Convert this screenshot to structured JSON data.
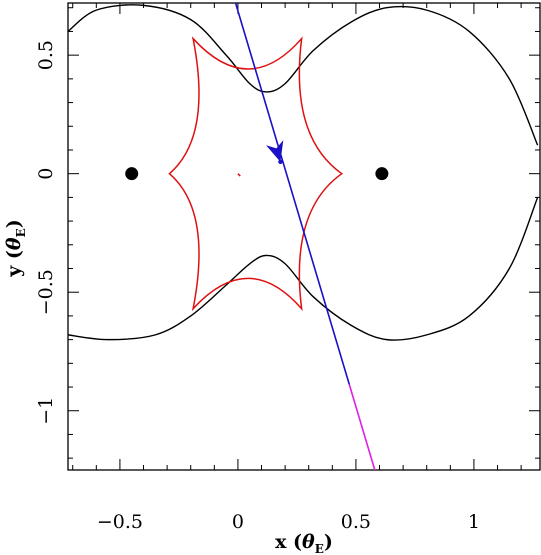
{
  "chart_data": {
    "type": "line",
    "xlabel": {
      "main": "x (",
      "symbol": "θ",
      "sub": "E",
      "close": ")"
    },
    "ylabel": {
      "main": "y (",
      "symbol": "θ",
      "sub": "E",
      "close": ")"
    },
    "xlim": [
      -0.72,
      1.28
    ],
    "ylim": [
      -1.25,
      0.72
    ],
    "x_ticks": [
      -0.5,
      0,
      0.5,
      1
    ],
    "x_tick_labels": [
      "−0.5",
      "0",
      "0.5",
      "1"
    ],
    "y_ticks": [
      -1,
      -0.5,
      0,
      0.5
    ],
    "y_tick_labels": [
      "−1",
      "−0.5",
      "0",
      "0.5"
    ],
    "grid": false,
    "lenses": [
      {
        "x": -0.45,
        "y": 0.0
      },
      {
        "x": 0.61,
        "y": 0.0
      }
    ],
    "caustic": {
      "color": "#dd1111",
      "cusps": [
        [
          -0.19,
          0.57
        ],
        [
          0.27,
          0.57
        ],
        [
          0.44,
          0.0
        ],
        [
          0.27,
          -0.57
        ],
        [
          -0.19,
          -0.57
        ],
        [
          -0.29,
          0.0
        ]
      ],
      "tiny_caustic": [
        [
          0.0,
          0.0
        ],
        [
          0.01,
          -0.01
        ]
      ]
    },
    "critical_curve_upper": [
      [
        -0.72,
        0.6
      ],
      [
        -0.6,
        0.69
      ],
      [
        -0.4,
        0.71
      ],
      [
        -0.2,
        0.65
      ],
      [
        -0.05,
        0.5
      ],
      [
        0.05,
        0.38
      ],
      [
        0.12,
        0.345
      ],
      [
        0.2,
        0.38
      ],
      [
        0.32,
        0.52
      ],
      [
        0.48,
        0.64
      ],
      [
        0.63,
        0.7
      ],
      [
        0.8,
        0.69
      ],
      [
        0.98,
        0.6
      ],
      [
        1.15,
        0.4
      ],
      [
        1.27,
        0.12
      ]
    ],
    "critical_curve_lower": [
      [
        -0.72,
        -0.68
      ],
      [
        -0.55,
        -0.7
      ],
      [
        -0.35,
        -0.68
      ],
      [
        -0.2,
        -0.6
      ],
      [
        -0.05,
        -0.47
      ],
      [
        0.05,
        -0.38
      ],
      [
        0.12,
        -0.345
      ],
      [
        0.2,
        -0.38
      ],
      [
        0.32,
        -0.52
      ],
      [
        0.48,
        -0.64
      ],
      [
        0.63,
        -0.7
      ],
      [
        0.8,
        -0.68
      ],
      [
        0.98,
        -0.6
      ],
      [
        1.15,
        -0.4
      ],
      [
        1.27,
        -0.1
      ]
    ],
    "source_trajectory": {
      "color": "#1a10c8",
      "late_color": "#e020e0",
      "start": [
        -0.01,
        0.72
      ],
      "end": [
        0.58,
        -1.25
      ],
      "split_y": -0.89,
      "arrow_at": [
        0.18,
        0.05
      ]
    }
  }
}
